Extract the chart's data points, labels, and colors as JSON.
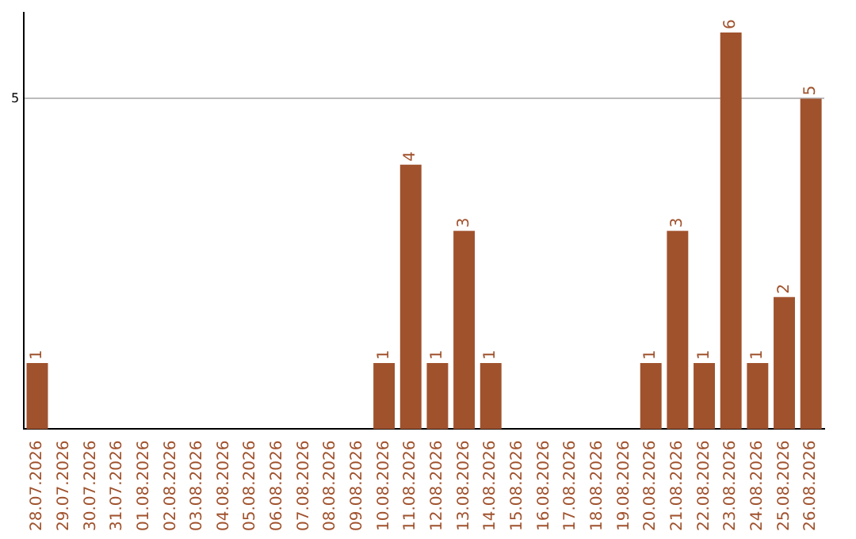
{
  "chart_data": {
    "type": "bar",
    "categories": [
      "28.07.2026",
      "29.07.2026",
      "30.07.2026",
      "31.07.2026",
      "01.08.2026",
      "02.08.2026",
      "03.08.2026",
      "04.08.2026",
      "05.08.2026",
      "06.08.2026",
      "07.08.2026",
      "08.08.2026",
      "09.08.2026",
      "10.08.2026",
      "11.08.2026",
      "12.08.2026",
      "13.08.2026",
      "14.08.2026",
      "15.08.2026",
      "16.08.2026",
      "17.08.2026",
      "18.08.2026",
      "19.08.2026",
      "20.08.2026",
      "21.08.2026",
      "22.08.2026",
      "23.08.2026",
      "24.08.2026",
      "25.08.2026",
      "26.08.2026"
    ],
    "values": [
      1,
      0,
      0,
      0,
      0,
      0,
      0,
      0,
      0,
      0,
      0,
      0,
      0,
      1,
      4,
      1,
      3,
      1,
      0,
      0,
      0,
      0,
      0,
      1,
      3,
      1,
      6,
      1,
      2,
      5
    ],
    "value_labels": [
      "1",
      null,
      null,
      null,
      null,
      null,
      null,
      null,
      null,
      null,
      null,
      null,
      null,
      "1",
      "4",
      "1",
      "3",
      "1",
      null,
      null,
      null,
      null,
      null,
      "1",
      "3",
      "1",
      "6",
      "1",
      "2",
      "5"
    ],
    "color": "#a0522d",
    "ylim": [
      0,
      6.3
    ],
    "yticks": [
      5
    ],
    "grid": "y"
  }
}
